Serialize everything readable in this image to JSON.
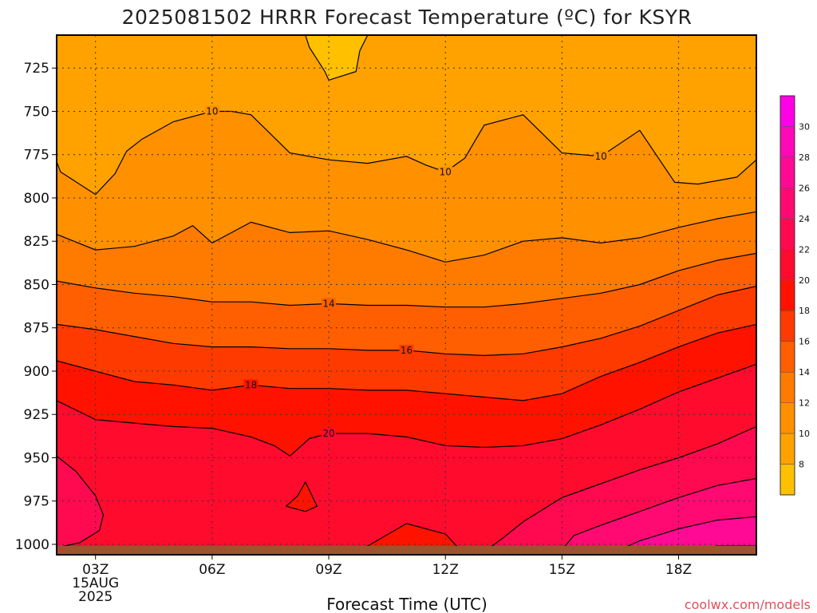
{
  "chart_data": {
    "type": "contour",
    "title": "2025081502 HRRR Forecast Temperature (ºC) for KSYR",
    "xlabel": "Forecast Time (UTC)",
    "credit": "coolwx.com/models",
    "x_ticks": [
      {
        "hour": 3,
        "label": "03Z",
        "sub1": "15AUG",
        "sub2": "2025"
      },
      {
        "hour": 6,
        "label": "06Z"
      },
      {
        "hour": 9,
        "label": "09Z"
      },
      {
        "hour": 12,
        "label": "12Z"
      },
      {
        "hour": 15,
        "label": "15Z"
      },
      {
        "hour": 18,
        "label": "18Z"
      }
    ],
    "x_range_hours": [
      2,
      20
    ],
    "y_ticks": [
      {
        "p": 725,
        "label": "725"
      },
      {
        "p": 750,
        "label": "750"
      },
      {
        "p": 775,
        "label": "775"
      },
      {
        "p": 800,
        "label": "800"
      },
      {
        "p": 825,
        "label": "825"
      },
      {
        "p": 850,
        "label": "850"
      },
      {
        "p": 875,
        "label": "875"
      },
      {
        "p": 900,
        "label": "900"
      },
      {
        "p": 925,
        "label": "925"
      },
      {
        "p": 950,
        "label": "950"
      },
      {
        "p": 975,
        "label": "975"
      },
      {
        "p": 1000,
        "label": "1000"
      }
    ],
    "y_range_hpa": [
      706,
      1006
    ],
    "colorbar": {
      "levels": [
        6,
        8,
        10,
        12,
        14,
        16,
        18,
        20,
        22,
        24,
        26,
        28,
        30,
        32
      ],
      "labels": [
        "8",
        "10",
        "12",
        "14",
        "16",
        "18",
        "20",
        "22",
        "24",
        "26",
        "28",
        "30"
      ],
      "colors": [
        "#ffc000",
        "#ffa200",
        "#ff9000",
        "#ff7b00",
        "#ff5f00",
        "#ff3a00",
        "#ff1300",
        "#ff0b2e",
        "#ff0a50",
        "#ff0a72",
        "#ff0a94",
        "#ff08b8",
        "#ff00e6"
      ]
    },
    "contours": [
      {
        "level": 8,
        "pts": [
          [
            8.4,
            706
          ],
          [
            8.5,
            713
          ],
          [
            8.9,
            727
          ],
          [
            9.0,
            732
          ],
          [
            9.7,
            727
          ],
          [
            9.8,
            715
          ],
          [
            10.0,
            706
          ]
        ]
      },
      {
        "level": 10,
        "pts": [
          [
            2,
            779
          ],
          [
            2.1,
            785
          ],
          [
            3.0,
            798
          ],
          [
            3.5,
            786
          ],
          [
            3.8,
            773
          ],
          [
            4.2,
            766
          ],
          [
            5.0,
            756
          ],
          [
            6.0,
            750
          ],
          [
            6.5,
            750
          ],
          [
            7.0,
            752
          ],
          [
            8.0,
            774
          ],
          [
            9.0,
            778
          ],
          [
            10.0,
            780
          ],
          [
            11.0,
            776
          ],
          [
            11.5,
            781
          ],
          [
            12.0,
            785
          ],
          [
            12.5,
            777
          ],
          [
            13.0,
            758
          ],
          [
            14.0,
            752
          ],
          [
            15.0,
            774
          ],
          [
            16.0,
            776
          ],
          [
            17.0,
            761
          ],
          [
            17.9,
            791
          ],
          [
            18.5,
            792
          ],
          [
            19.5,
            788
          ],
          [
            20,
            778
          ]
        ]
      },
      {
        "level": 12,
        "pts": [
          [
            2,
            821
          ],
          [
            3.0,
            830
          ],
          [
            4.0,
            828
          ],
          [
            5.0,
            822
          ],
          [
            5.5,
            816
          ],
          [
            6.0,
            826
          ],
          [
            6.5,
            820
          ],
          [
            7.0,
            814
          ],
          [
            8.0,
            820
          ],
          [
            9.0,
            819
          ],
          [
            10.0,
            824
          ],
          [
            11.0,
            830
          ],
          [
            12.0,
            837
          ],
          [
            13.0,
            833
          ],
          [
            14.0,
            825
          ],
          [
            15.0,
            823
          ],
          [
            16.0,
            826
          ],
          [
            17.0,
            823
          ],
          [
            18.0,
            817
          ],
          [
            19.0,
            812
          ],
          [
            20,
            808
          ]
        ]
      },
      {
        "level": 14,
        "pts": [
          [
            2,
            848
          ],
          [
            3.0,
            852
          ],
          [
            4.0,
            855
          ],
          [
            5.0,
            857
          ],
          [
            6.0,
            860
          ],
          [
            7.0,
            860
          ],
          [
            8.0,
            862
          ],
          [
            9.0,
            861
          ],
          [
            10.0,
            862
          ],
          [
            11.0,
            862
          ],
          [
            12.0,
            863
          ],
          [
            13.0,
            863
          ],
          [
            14.0,
            861
          ],
          [
            15.0,
            858
          ],
          [
            16.0,
            855
          ],
          [
            17.0,
            850
          ],
          [
            18.0,
            842
          ],
          [
            19.0,
            836
          ],
          [
            20,
            832
          ]
        ]
      },
      {
        "level": 16,
        "pts": [
          [
            2,
            873
          ],
          [
            3.0,
            876
          ],
          [
            4.0,
            880
          ],
          [
            5.0,
            884
          ],
          [
            6.0,
            886
          ],
          [
            7.0,
            886
          ],
          [
            8.0,
            887
          ],
          [
            9.0,
            887
          ],
          [
            10.0,
            888
          ],
          [
            11.0,
            888
          ],
          [
            12.0,
            890
          ],
          [
            13.0,
            891
          ],
          [
            14.0,
            890
          ],
          [
            15.0,
            886
          ],
          [
            16.0,
            881
          ],
          [
            17.0,
            874
          ],
          [
            18.0,
            865
          ],
          [
            19.0,
            856
          ],
          [
            20,
            851
          ]
        ]
      },
      {
        "level": 18,
        "pts": [
          [
            2,
            894
          ],
          [
            3.0,
            900
          ],
          [
            4.0,
            906
          ],
          [
            5.0,
            908
          ],
          [
            6.0,
            911
          ],
          [
            7.0,
            908
          ],
          [
            8.0,
            910
          ],
          [
            9.0,
            910
          ],
          [
            10.0,
            911
          ],
          [
            11.0,
            911
          ],
          [
            12.0,
            913
          ],
          [
            13.0,
            915
          ],
          [
            14.0,
            917
          ],
          [
            15.0,
            913
          ],
          [
            16.0,
            903
          ],
          [
            17.0,
            895
          ],
          [
            18.0,
            886
          ],
          [
            19.0,
            878
          ],
          [
            20,
            873
          ]
        ]
      },
      {
        "level": 20,
        "pts": [
          [
            2,
            917
          ],
          [
            3.0,
            928
          ],
          [
            4.0,
            930
          ],
          [
            5.0,
            932
          ],
          [
            6.0,
            933
          ],
          [
            7.0,
            938
          ],
          [
            7.6,
            943
          ],
          [
            8.0,
            949
          ],
          [
            8.5,
            939
          ],
          [
            9.0,
            936
          ],
          [
            10.0,
            936
          ],
          [
            11.0,
            938
          ],
          [
            12.0,
            943
          ],
          [
            13.0,
            944
          ],
          [
            14.0,
            943
          ],
          [
            15.0,
            939
          ],
          [
            16.0,
            931
          ],
          [
            17.0,
            922
          ],
          [
            18.0,
            912
          ],
          [
            19.0,
            904
          ],
          [
            20,
            896
          ]
        ]
      },
      {
        "level": 22,
        "pts": [
          [
            2,
            949
          ],
          [
            2.5,
            958
          ],
          [
            3.0,
            972
          ],
          [
            3.2,
            983
          ],
          [
            3.1,
            992
          ],
          [
            2.6,
            999
          ],
          [
            2.0,
            1002
          ]
        ]
      },
      {
        "level": 22,
        "pts": [
          [
            12.9,
            1006
          ],
          [
            13.5,
            996
          ],
          [
            14.0,
            987
          ],
          [
            14.5,
            980
          ],
          [
            15.0,
            973
          ],
          [
            16.0,
            965
          ],
          [
            17.0,
            957
          ],
          [
            18.0,
            950
          ],
          [
            19.0,
            942
          ],
          [
            20,
            932
          ]
        ]
      },
      {
        "level": 24,
        "pts": [
          [
            14.9,
            1006
          ],
          [
            15.3,
            995
          ],
          [
            16.0,
            989
          ],
          [
            17.0,
            981
          ],
          [
            18.0,
            973
          ],
          [
            19.0,
            966
          ],
          [
            20,
            962
          ]
        ]
      },
      {
        "level": 26,
        "pts": [
          [
            16.2,
            1006
          ],
          [
            17.0,
            998
          ],
          [
            18.0,
            991
          ],
          [
            19.0,
            986
          ],
          [
            20,
            984
          ]
        ]
      },
      {
        "level": 28,
        "pts": [
          [
            17.5,
            1006
          ],
          [
            18.2,
            1003
          ],
          [
            19.0,
            1001
          ],
          [
            20,
            1001
          ]
        ]
      },
      {
        "level": 22,
        "pts": [
          [
            7.9,
            978
          ],
          [
            8.2,
            972
          ],
          [
            8.4,
            964
          ],
          [
            8.7,
            978
          ],
          [
            8.4,
            981
          ],
          [
            7.9,
            978
          ]
        ]
      },
      {
        "level": 20,
        "pts": [
          [
            9.0,
            1006
          ],
          [
            10.0,
            1001
          ],
          [
            11.0,
            988
          ],
          [
            12.0,
            994
          ],
          [
            12.5,
            1006
          ]
        ]
      }
    ],
    "contour_labels": [
      {
        "text": "10",
        "hour": 6.0,
        "p": 750
      },
      {
        "text": "10",
        "hour": 12.0,
        "p": 785
      },
      {
        "text": "10",
        "hour": 16.0,
        "p": 776
      },
      {
        "text": "14",
        "hour": 9.0,
        "p": 861
      },
      {
        "text": "16",
        "hour": 11.0,
        "p": 888
      },
      {
        "text": "18",
        "hour": 7.0,
        "p": 908
      },
      {
        "text": "20",
        "hour": 9.0,
        "p": 936
      }
    ]
  }
}
